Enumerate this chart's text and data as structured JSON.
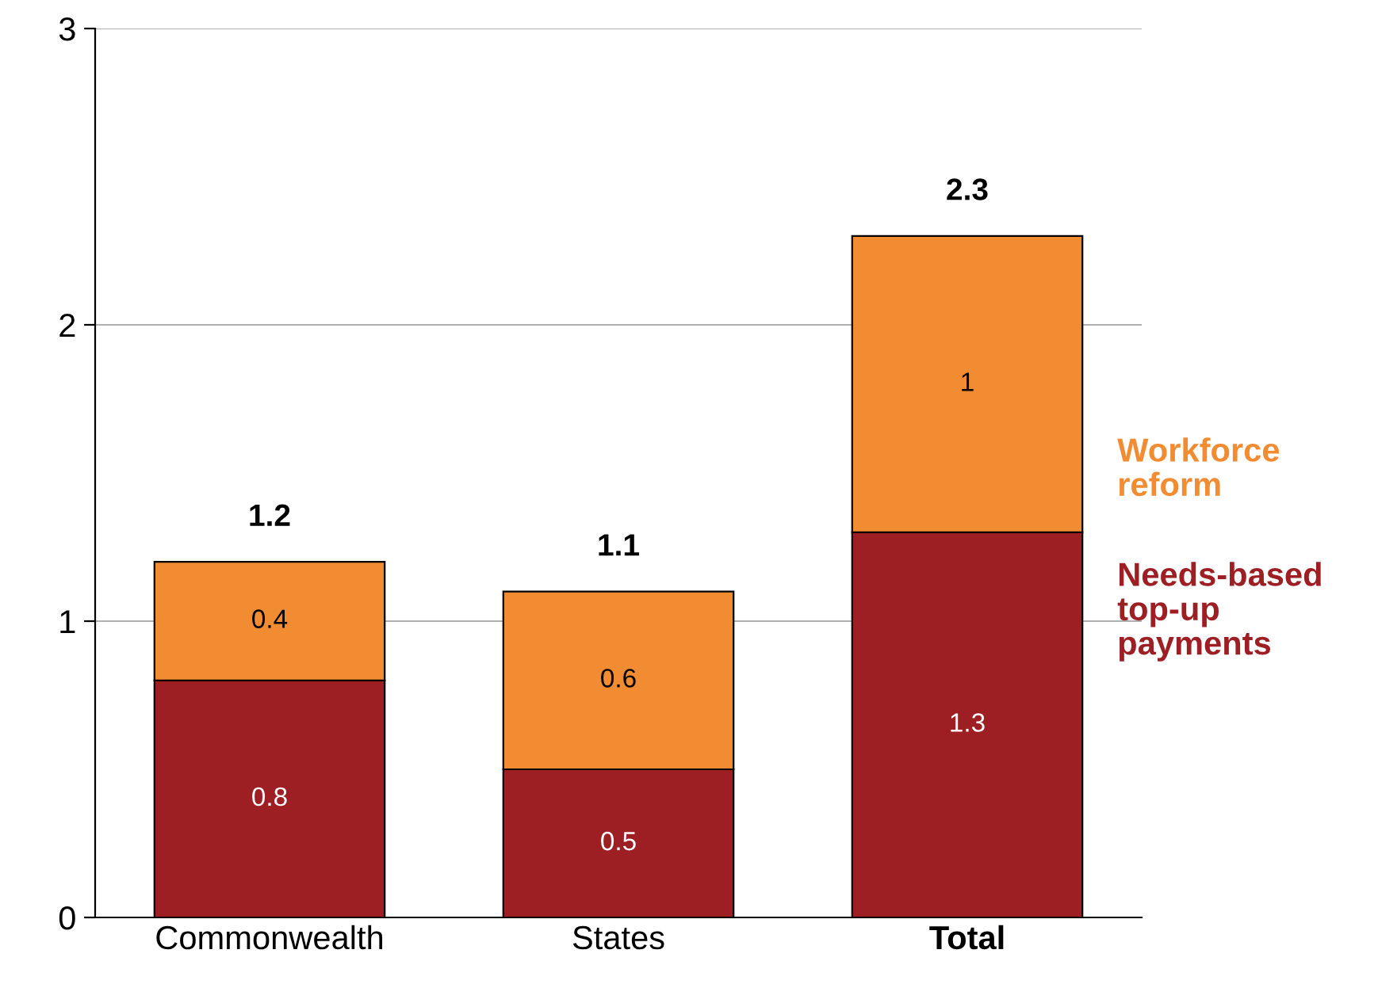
{
  "chart_data": {
    "type": "bar",
    "stacked": true,
    "categories": [
      "Commonwealth",
      "States",
      "Total"
    ],
    "series": [
      {
        "name": "Needs-based\ntop-up\npayments",
        "color": "#9e1f23",
        "values": [
          0.8,
          0.5,
          1.3
        ]
      },
      {
        "name": "Workforce\nreform",
        "color": "#f28c33",
        "values": [
          0.4,
          0.6,
          1
        ]
      }
    ],
    "totals": [
      "1.2",
      "1.1",
      "2.3"
    ],
    "data_labels": true,
    "ylim": [
      0,
      3
    ],
    "yticks": [
      0,
      1,
      2,
      3
    ],
    "grid": "y",
    "legend": "right"
  }
}
